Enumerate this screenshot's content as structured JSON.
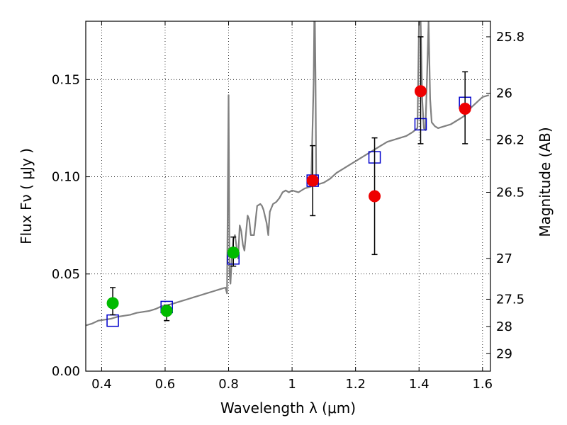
{
  "chart_data": {
    "type": "scatter",
    "xlabel": "Wavelength  λ (μm)",
    "ylabel": "Flux  Fν  ( μJy )",
    "y2label": "Magnitude (AB)",
    "xlim": [
      0.35,
      1.625
    ],
    "ylim": [
      0.0,
      0.18
    ],
    "grid": true,
    "x_ticks": [
      0.4,
      0.6,
      0.8,
      1.0,
      1.2,
      1.4,
      1.6
    ],
    "x_tick_labels": [
      "0.4",
      "0.6",
      "0.8",
      "1",
      "1.2",
      "1.4",
      "1.6"
    ],
    "y_ticks": [
      0.0,
      0.05,
      0.1,
      0.15
    ],
    "y_tick_labels": [
      "0.00",
      "0.05",
      "0.10",
      "0.15"
    ],
    "y2_ticks": [
      {
        "flux": 0.172,
        "label": "25.8"
      },
      {
        "flux": 0.143,
        "label": "26"
      },
      {
        "flux": 0.119,
        "label": "26.2"
      },
      {
        "flux": 0.092,
        "label": "26.5"
      },
      {
        "flux": 0.058,
        "label": "27"
      },
      {
        "flux": 0.037,
        "label": "27.5"
      },
      {
        "flux": 0.023,
        "label": "28"
      },
      {
        "flux": 0.009,
        "label": "29"
      }
    ],
    "colors": {
      "spectrum": "#808080",
      "green_points": "#00bb00",
      "red_points": "#ee0000",
      "model_boxes": "#0000cc",
      "errorbars": "#000000"
    },
    "series": [
      {
        "marker": "line",
        "color": "#808080",
        "x": [
          0.35,
          0.37,
          0.39,
          0.41,
          0.43,
          0.45,
          0.47,
          0.49,
          0.51,
          0.53,
          0.55,
          0.57,
          0.59,
          0.61,
          0.63,
          0.65,
          0.67,
          0.69,
          0.71,
          0.73,
          0.75,
          0.77,
          0.79,
          0.795,
          0.8,
          0.803,
          0.806,
          0.81,
          0.815,
          0.82,
          0.83,
          0.835,
          0.84,
          0.845,
          0.85,
          0.86,
          0.865,
          0.87,
          0.88,
          0.89,
          0.9,
          0.905,
          0.91,
          0.92,
          0.925,
          0.93,
          0.94,
          0.95,
          0.96,
          0.97,
          0.98,
          0.99,
          1.0,
          1.02,
          1.04,
          1.06,
          1.068,
          1.07,
          1.072,
          1.074,
          1.076,
          1.08,
          1.1,
          1.12,
          1.14,
          1.16,
          1.18,
          1.2,
          1.22,
          1.24,
          1.26,
          1.28,
          1.3,
          1.32,
          1.34,
          1.36,
          1.38,
          1.395,
          1.4,
          1.405,
          1.41,
          1.415,
          1.42,
          1.425,
          1.43,
          1.435,
          1.44,
          1.45,
          1.46,
          1.48,
          1.5,
          1.52,
          1.54,
          1.56,
          1.58,
          1.6,
          1.62
        ],
        "y": [
          0.0235,
          0.0245,
          0.026,
          0.0265,
          0.027,
          0.028,
          0.0285,
          0.029,
          0.03,
          0.0305,
          0.031,
          0.032,
          0.0335,
          0.034,
          0.035,
          0.036,
          0.037,
          0.038,
          0.039,
          0.04,
          0.041,
          0.042,
          0.043,
          0.04,
          0.142,
          0.05,
          0.045,
          0.058,
          0.068,
          0.07,
          0.058,
          0.075,
          0.072,
          0.065,
          0.062,
          0.08,
          0.078,
          0.07,
          0.07,
          0.085,
          0.086,
          0.085,
          0.083,
          0.076,
          0.07,
          0.082,
          0.086,
          0.087,
          0.089,
          0.092,
          0.093,
          0.092,
          0.093,
          0.092,
          0.094,
          0.095,
          0.15,
          0.18,
          0.18,
          0.15,
          0.1,
          0.096,
          0.097,
          0.099,
          0.102,
          0.104,
          0.106,
          0.108,
          0.11,
          0.112,
          0.114,
          0.116,
          0.118,
          0.119,
          0.12,
          0.121,
          0.123,
          0.125,
          0.18,
          0.18,
          0.14,
          0.125,
          0.124,
          0.15,
          0.18,
          0.14,
          0.128,
          0.126,
          0.125,
          0.126,
          0.127,
          0.129,
          0.131,
          0.135,
          0.138,
          0.141,
          0.142
        ]
      },
      {
        "marker": "square",
        "color": "#0000cc",
        "x": [
          0.435,
          0.605,
          0.815,
          1.065,
          1.26,
          1.405,
          1.545
        ],
        "y": [
          0.026,
          0.033,
          0.058,
          0.098,
          0.11,
          0.127,
          0.138
        ]
      },
      {
        "marker": "circle",
        "color": "#00bb00",
        "x": [
          0.435,
          0.605,
          0.815
        ],
        "y": [
          0.035,
          0.031,
          0.061
        ],
        "yerr_low": [
          0.029,
          0.026,
          0.054
        ],
        "yerr_high": [
          0.043,
          0.034,
          0.069
        ]
      },
      {
        "marker": "circle",
        "color": "#ee0000",
        "x": [
          1.065,
          1.26,
          1.405,
          1.545
        ],
        "y": [
          0.098,
          0.09,
          0.144,
          0.135
        ],
        "yerr_low": [
          0.08,
          0.06,
          0.117,
          0.117
        ],
        "yerr_high": [
          0.116,
          0.12,
          0.172,
          0.154
        ]
      }
    ]
  }
}
